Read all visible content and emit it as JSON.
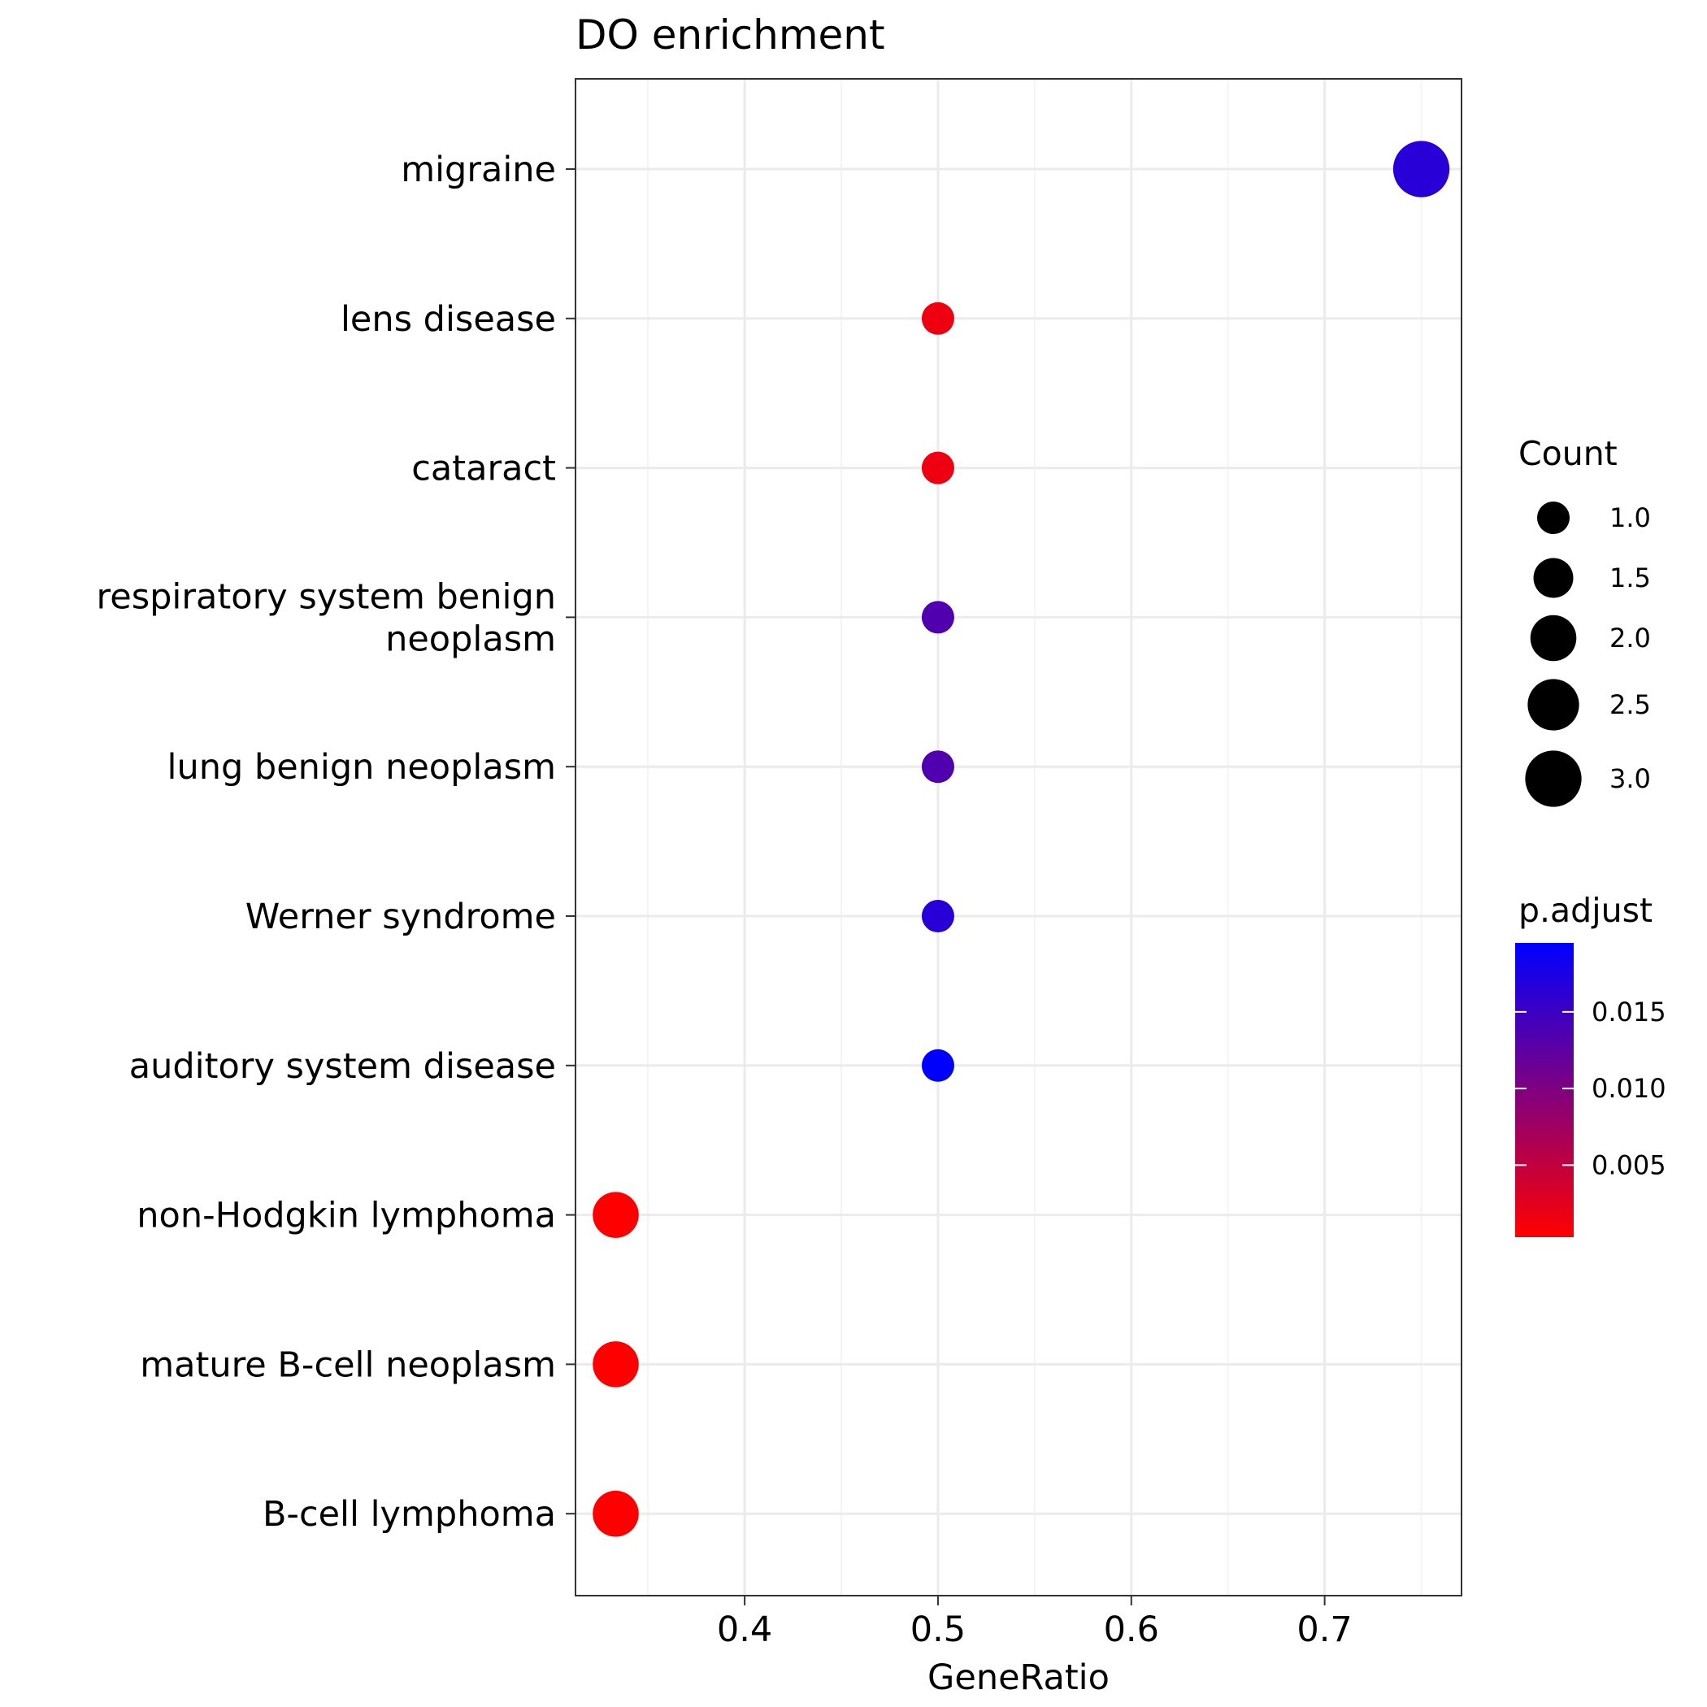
{
  "chart_data": {
    "type": "scatter",
    "title": "DO enrichment",
    "xlabel": "GeneRatio",
    "ylabel": "",
    "xlim": [
      0.3125,
      0.7708
    ],
    "x_ticks": [
      "0.4",
      "0.5",
      "0.6",
      "0.7"
    ],
    "grid": true,
    "legend_position": "right",
    "categories": [
      "migraine",
      "lens disease",
      "cataract",
      "respiratory system benign neoplasm",
      "lung benign neoplasm",
      "Werner syndrome",
      "auditory system disease",
      "non-Hodgkin lymphoma",
      "mature B-cell neoplasm",
      "B-cell lymphoma"
    ],
    "category_lines": [
      [
        "migraine"
      ],
      [
        "lens disease"
      ],
      [
        "cataract"
      ],
      [
        "respiratory system benign",
        "neoplasm"
      ],
      [
        "lung benign neoplasm"
      ],
      [
        "Werner syndrome"
      ],
      [
        "auditory system disease"
      ],
      [
        "non-Hodgkin lymphoma"
      ],
      [
        "mature B-cell neoplasm"
      ],
      [
        "B-cell lymphoma"
      ]
    ],
    "points": [
      {
        "category": "migraine",
        "gene_ratio": 0.75,
        "count": 3,
        "p_adjust": 0.0165
      },
      {
        "category": "lens disease",
        "gene_ratio": 0.5,
        "count": 1,
        "p_adjust": 0.0015
      },
      {
        "category": "cataract",
        "gene_ratio": 0.5,
        "count": 1,
        "p_adjust": 0.0015
      },
      {
        "category": "respiratory system benign neoplasm",
        "gene_ratio": 0.5,
        "count": 1,
        "p_adjust": 0.0135
      },
      {
        "category": "lung benign neoplasm",
        "gene_ratio": 0.5,
        "count": 1,
        "p_adjust": 0.0135
      },
      {
        "category": "Werner syndrome",
        "gene_ratio": 0.5,
        "count": 1,
        "p_adjust": 0.0165
      },
      {
        "category": "auditory system disease",
        "gene_ratio": 0.5,
        "count": 1,
        "p_adjust": 0.0195
      },
      {
        "category": "non-Hodgkin lymphoma",
        "gene_ratio": 0.3333,
        "count": 2,
        "p_adjust": 0.0003
      },
      {
        "category": "mature B-cell neoplasm",
        "gene_ratio": 0.3333,
        "count": 2,
        "p_adjust": 0.0003
      },
      {
        "category": "B-cell lymphoma",
        "gene_ratio": 0.3333,
        "count": 2,
        "p_adjust": 0.0003
      }
    ],
    "size_legend": {
      "title": "Count",
      "values": [
        1.0,
        1.5,
        2.0,
        2.5,
        3.0
      ],
      "labels": [
        "1.0",
        "1.5",
        "2.0",
        "2.5",
        "3.0"
      ]
    },
    "color_legend": {
      "title": "p.adjust",
      "range": [
        0.0003,
        0.0195
      ],
      "ticks": [
        0.005,
        0.01,
        0.015
      ],
      "labels": [
        "0.005",
        "0.010",
        "0.015"
      ],
      "low_color": "#ff0000",
      "high_color": "#0000ff"
    },
    "colors": {
      "panel_border": "#333333",
      "grid_major": "#ebebeb",
      "grid_minor": "#f4f4f4",
      "tick": "#333333"
    }
  }
}
